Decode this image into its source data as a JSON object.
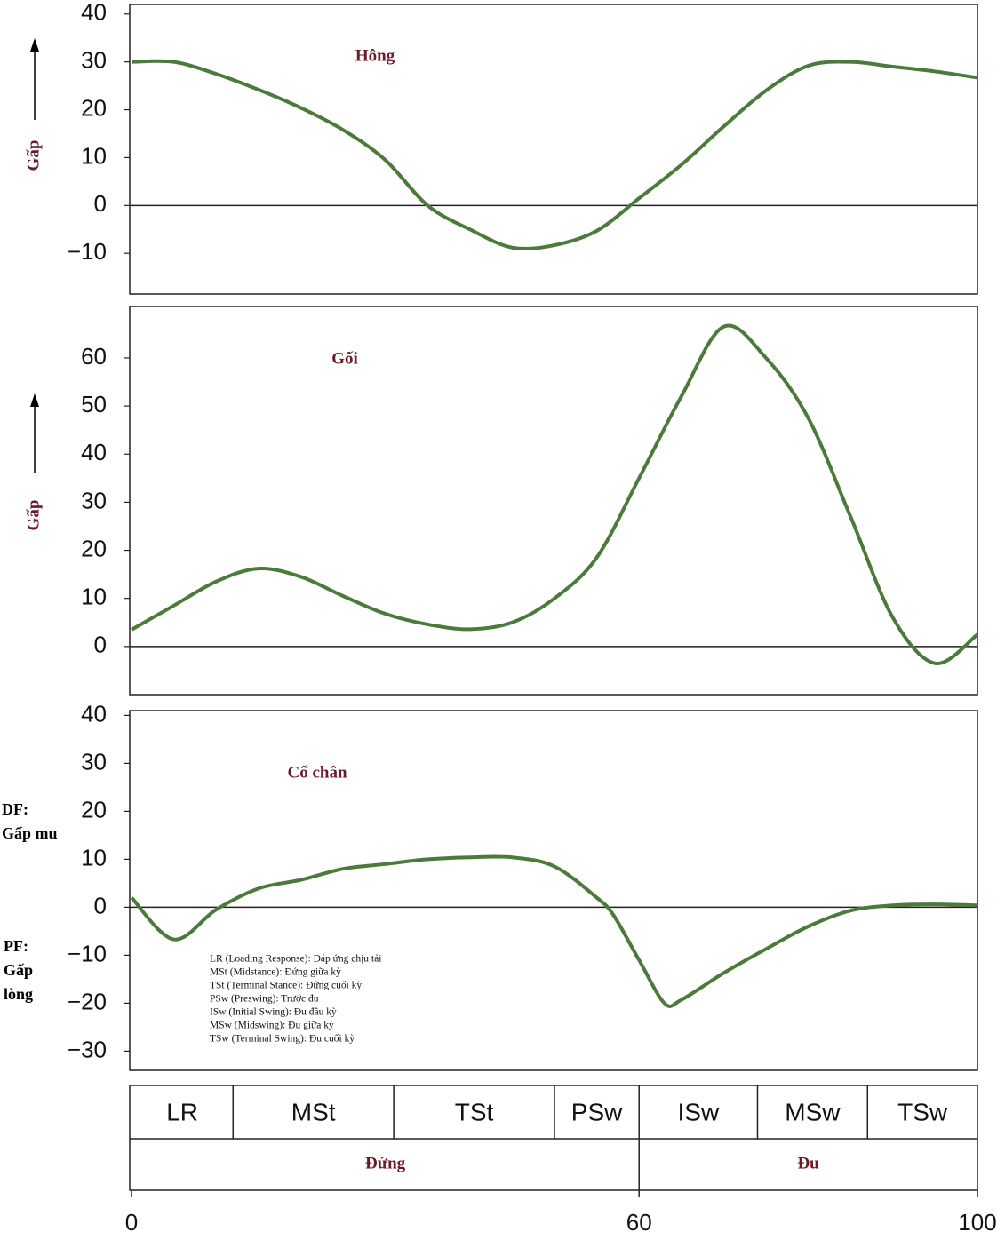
{
  "chart_data": [
    {
      "type": "line",
      "title": "Hông",
      "y_label": "Gấp",
      "color": "#4b7b3b",
      "x": [
        0,
        5,
        10,
        15,
        20,
        25,
        30,
        35,
        40,
        45,
        50,
        55,
        60,
        65,
        70,
        75,
        80,
        85,
        90,
        95,
        100
      ],
      "values": [
        30,
        30,
        27.5,
        24.2,
        20.4,
        15.8,
        9.5,
        0,
        -5,
        -8.8,
        -8.3,
        -5.3,
        1.5,
        8.5,
        16.5,
        24,
        29.2,
        30,
        29,
        28,
        26.7
      ],
      "ylim": [
        -18.5,
        42
      ],
      "yticks": [
        {
          "value": -10,
          "label": "−10"
        },
        0,
        10,
        20,
        30,
        40
      ]
    },
    {
      "type": "line",
      "title": "Gối",
      "y_label": "Gấp",
      "color": "#4b7b3b",
      "x": [
        0,
        5,
        10,
        15,
        20,
        25,
        30,
        35,
        40,
        45,
        50,
        55,
        60,
        65,
        70,
        75,
        80,
        85,
        90,
        95,
        100
      ],
      "values": [
        3.5,
        8.5,
        13.5,
        16.2,
        14.5,
        10.5,
        6.8,
        4.6,
        3.6,
        5,
        10,
        18.5,
        35,
        52,
        66.5,
        60,
        47.5,
        27,
        6,
        -3.5,
        2.5
      ],
      "ylim": [
        -10,
        70.7
      ],
      "yticks": [
        0,
        10,
        20,
        30,
        40,
        50,
        60
      ]
    },
    {
      "type": "line",
      "title": "Cổ chân",
      "color": "#4b7b3b",
      "dorsiflexion_label": [
        "DF:",
        "Gấp mu"
      ],
      "plantarflexion_label": [
        "PF:",
        "Gấp",
        "lòng"
      ],
      "x": [
        0,
        5,
        10,
        15,
        20,
        25,
        30,
        35,
        40,
        45,
        50,
        55,
        57,
        60,
        63,
        65,
        70,
        75,
        80,
        85,
        90,
        95,
        100
      ],
      "values": [
        2,
        -6.7,
        -0.5,
        3.9,
        5.7,
        8,
        9,
        10,
        10.4,
        10.4,
        8.5,
        2,
        -1.7,
        -11,
        -20,
        -19.3,
        -13.7,
        -8.7,
        -4,
        -0.7,
        0.4,
        0.6,
        0.4
      ],
      "ylim": [
        -34,
        41
      ],
      "yticks": [
        {
          "value": -30,
          "label": "−30"
        },
        {
          "value": -20,
          "label": "−20"
        },
        {
          "value": -10,
          "label": "−10"
        },
        0,
        10,
        20,
        30,
        40
      ]
    }
  ],
  "x_axis": {
    "xlim": [
      0,
      100
    ],
    "xticks": [
      0,
      60,
      100
    ]
  },
  "phases": [
    {
      "name": "LR",
      "start": 0,
      "end": 12
    },
    {
      "name": "MSt",
      "start": 12,
      "end": 31
    },
    {
      "name": "TSt",
      "start": 31,
      "end": 50
    },
    {
      "name": "PSw",
      "start": 50,
      "end": 60
    },
    {
      "name": "ISw",
      "start": 60,
      "end": 74
    },
    {
      "name": "MSw",
      "start": 74,
      "end": 87
    },
    {
      "name": "TSw",
      "start": 87,
      "end": 100
    }
  ],
  "periods": [
    {
      "name": "Đứng",
      "start": 0,
      "end": 60
    },
    {
      "name": "Đu",
      "start": 60,
      "end": 100
    }
  ],
  "notes": [
    "LR (Loading Response): Đáp ứng chịu tải",
    "MSt (Midstance): Đứng giữa kỳ",
    "TSt (Terminal Stance): Đứng cuối kỳ",
    "PSw (Preswing): Trước đu",
    "ISw (Initial Swing): Đu đầu kỳ",
    "MSw (Midswing): Đu giữa kỳ",
    "TSw (Terminal Swing): Đu cuối kỳ"
  ]
}
